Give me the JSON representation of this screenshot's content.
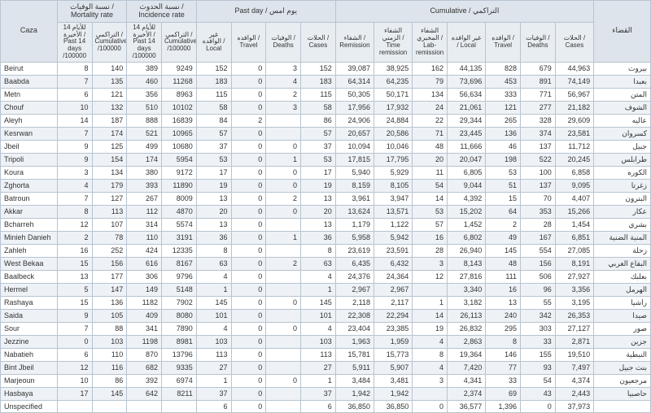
{
  "headers": {
    "caza": "Caza",
    "mortality": "نسبة الوفيات / Mortality rate",
    "incidence": "نسبة الحدوث / Incidence rate",
    "pastday": "Past day / يوم امس",
    "cumulative": "Cumulative / التراكمي",
    "caza_ar": "القضاء",
    "past14_100k": "للأيام 14 الأخيرة / Past 14 days /100000",
    "cumul_100k": "التراكمي / Cumulative /100000",
    "local": "غير الوافده / Local",
    "travel": "الوافده / Travel",
    "deaths": "الوفيات / Deaths",
    "cases": "الحلات / Cases",
    "remission": "الشفاء / Remission",
    "time_remission": "الشفاء الزمني / Time remission",
    "lab_remission": "الشفاء المخبري / Lab-remission"
  },
  "rows": [
    {
      "en": "Beirut",
      "ar": "بيروت",
      "m14": "8",
      "mc": "140",
      "i14": "389",
      "ic": "9249",
      "loc": "152",
      "trv": "0",
      "dth": "3",
      "cas": "152",
      "crem": "39,087",
      "ctrem": "38,925",
      "clab": "162",
      "cloc": "44,135",
      "ctrv": "828",
      "cdth": "679",
      "ccas": "44,963"
    },
    {
      "en": "Baabda",
      "ar": "بعبدا",
      "m14": "7",
      "mc": "135",
      "i14": "460",
      "ic": "11268",
      "loc": "183",
      "trv": "0",
      "dth": "4",
      "cas": "183",
      "crem": "64,314",
      "ctrem": "64,235",
      "clab": "79",
      "cloc": "73,696",
      "ctrv": "453",
      "cdth": "891",
      "ccas": "74,149"
    },
    {
      "en": "Metn",
      "ar": "المتن",
      "m14": "6",
      "mc": "121",
      "i14": "356",
      "ic": "8963",
      "loc": "115",
      "trv": "0",
      "dth": "2",
      "cas": "115",
      "crem": "50,305",
      "ctrem": "50,171",
      "clab": "134",
      "cloc": "56,634",
      "ctrv": "333",
      "cdth": "771",
      "ccas": "56,967"
    },
    {
      "en": "Chouf",
      "ar": "الشوف",
      "m14": "10",
      "mc": "132",
      "i14": "510",
      "ic": "10102",
      "loc": "58",
      "trv": "0",
      "dth": "3",
      "cas": "58",
      "crem": "17,956",
      "ctrem": "17,932",
      "clab": "24",
      "cloc": "21,061",
      "ctrv": "121",
      "cdth": "277",
      "ccas": "21,182"
    },
    {
      "en": "Aleyh",
      "ar": "عاليه",
      "m14": "14",
      "mc": "187",
      "i14": "888",
      "ic": "16839",
      "loc": "84",
      "trv": "2",
      "dth": "",
      "cas": "86",
      "crem": "24,906",
      "ctrem": "24,884",
      "clab": "22",
      "cloc": "29,344",
      "ctrv": "265",
      "cdth": "328",
      "ccas": "29,609"
    },
    {
      "en": "Kesrwan",
      "ar": "كسروان",
      "m14": "7",
      "mc": "174",
      "i14": "521",
      "ic": "10965",
      "loc": "57",
      "trv": "0",
      "dth": "",
      "cas": "57",
      "crem": "20,657",
      "ctrem": "20,586",
      "clab": "71",
      "cloc": "23,445",
      "ctrv": "136",
      "cdth": "374",
      "ccas": "23,581"
    },
    {
      "en": "Jbeil",
      "ar": "جبيل",
      "m14": "9",
      "mc": "125",
      "i14": "499",
      "ic": "10680",
      "loc": "37",
      "trv": "0",
      "dth": "0",
      "cas": "37",
      "crem": "10,094",
      "ctrem": "10,046",
      "clab": "48",
      "cloc": "11,666",
      "ctrv": "46",
      "cdth": "137",
      "ccas": "11,712"
    },
    {
      "en": "Tripoli",
      "ar": "طرابلس",
      "m14": "9",
      "mc": "154",
      "i14": "174",
      "ic": "5954",
      "loc": "53",
      "trv": "0",
      "dth": "1",
      "cas": "53",
      "crem": "17,815",
      "ctrem": "17,795",
      "clab": "20",
      "cloc": "20,047",
      "ctrv": "198",
      "cdth": "522",
      "ccas": "20,245"
    },
    {
      "en": "Koura",
      "ar": "الكوره",
      "m14": "3",
      "mc": "134",
      "i14": "380",
      "ic": "9172",
      "loc": "17",
      "trv": "0",
      "dth": "0",
      "cas": "17",
      "crem": "5,940",
      "ctrem": "5,929",
      "clab": "11",
      "cloc": "6,805",
      "ctrv": "53",
      "cdth": "100",
      "ccas": "6,858"
    },
    {
      "en": "Zghorta",
      "ar": "زغرتا",
      "m14": "4",
      "mc": "179",
      "i14": "393",
      "ic": "11890",
      "loc": "19",
      "trv": "0",
      "dth": "0",
      "cas": "19",
      "crem": "8,159",
      "ctrem": "8,105",
      "clab": "54",
      "cloc": "9,044",
      "ctrv": "51",
      "cdth": "137",
      "ccas": "9,095"
    },
    {
      "en": "Batroun",
      "ar": "البترون",
      "m14": "7",
      "mc": "127",
      "i14": "267",
      "ic": "8009",
      "loc": "13",
      "trv": "0",
      "dth": "2",
      "cas": "13",
      "crem": "3,961",
      "ctrem": "3,947",
      "clab": "14",
      "cloc": "4,392",
      "ctrv": "15",
      "cdth": "70",
      "ccas": "4,407"
    },
    {
      "en": "Akkar",
      "ar": "عكار",
      "m14": "8",
      "mc": "113",
      "i14": "112",
      "ic": "4870",
      "loc": "20",
      "trv": "0",
      "dth": "0",
      "cas": "20",
      "crem": "13,624",
      "ctrem": "13,571",
      "clab": "53",
      "cloc": "15,202",
      "ctrv": "64",
      "cdth": "353",
      "ccas": "15,266"
    },
    {
      "en": "Bcharreh",
      "ar": "بشري",
      "m14": "12",
      "mc": "107",
      "i14": "314",
      "ic": "5574",
      "loc": "13",
      "trv": "0",
      "dth": "",
      "cas": "13",
      "crem": "1,179",
      "ctrem": "1,122",
      "clab": "57",
      "cloc": "1,452",
      "ctrv": "2",
      "cdth": "28",
      "ccas": "1,454"
    },
    {
      "en": "Minieh Danieh",
      "ar": "المنية الضنية",
      "m14": "2",
      "mc": "78",
      "i14": "110",
      "ic": "3191",
      "loc": "36",
      "trv": "0",
      "dth": "1",
      "cas": "36",
      "crem": "5,958",
      "ctrem": "5,942",
      "clab": "16",
      "cloc": "6,802",
      "ctrv": "49",
      "cdth": "167",
      "ccas": "6,851"
    },
    {
      "en": "Zahleh",
      "ar": "زحلة",
      "m14": "16",
      "mc": "252",
      "i14": "424",
      "ic": "12335",
      "loc": "8",
      "trv": "0",
      "dth": "",
      "cas": "8",
      "crem": "23,619",
      "ctrem": "23,591",
      "clab": "28",
      "cloc": "26,940",
      "ctrv": "145",
      "cdth": "554",
      "ccas": "27,085"
    },
    {
      "en": "West Bekaa",
      "ar": "البقاع الغربي",
      "m14": "15",
      "mc": "156",
      "i14": "616",
      "ic": "8167",
      "loc": "63",
      "trv": "0",
      "dth": "2",
      "cas": "63",
      "crem": "6,435",
      "ctrem": "6,432",
      "clab": "3",
      "cloc": "8,143",
      "ctrv": "48",
      "cdth": "156",
      "ccas": "8,191"
    },
    {
      "en": "Baalbeck",
      "ar": "بعلبك",
      "m14": "13",
      "mc": "177",
      "i14": "306",
      "ic": "9796",
      "loc": "4",
      "trv": "0",
      "dth": "",
      "cas": "4",
      "crem": "24,376",
      "ctrem": "24,364",
      "clab": "12",
      "cloc": "27,816",
      "ctrv": "111",
      "cdth": "506",
      "ccas": "27,927"
    },
    {
      "en": "Hermel",
      "ar": "الهرمل",
      "m14": "5",
      "mc": "147",
      "i14": "149",
      "ic": "5148",
      "loc": "1",
      "trv": "0",
      "dth": "",
      "cas": "1",
      "crem": "2,967",
      "ctrem": "2,967",
      "clab": "",
      "cloc": "3,340",
      "ctrv": "16",
      "cdth": "96",
      "ccas": "3,356"
    },
    {
      "en": "Rashaya",
      "ar": "راشيا",
      "m14": "15",
      "mc": "136",
      "i14": "1182",
      "ic": "7902",
      "loc": "145",
      "trv": "0",
      "dth": "0",
      "cas": "145",
      "crem": "2,118",
      "ctrem": "2,117",
      "clab": "1",
      "cloc": "3,182",
      "ctrv": "13",
      "cdth": "55",
      "ccas": "3,195"
    },
    {
      "en": "Saida",
      "ar": "صيدا",
      "m14": "9",
      "mc": "105",
      "i14": "409",
      "ic": "8080",
      "loc": "101",
      "trv": "0",
      "dth": "",
      "cas": "101",
      "crem": "22,308",
      "ctrem": "22,294",
      "clab": "14",
      "cloc": "26,113",
      "ctrv": "240",
      "cdth": "342",
      "ccas": "26,353"
    },
    {
      "en": "Sour",
      "ar": "صور",
      "m14": "7",
      "mc": "88",
      "i14": "341",
      "ic": "7890",
      "loc": "4",
      "trv": "0",
      "dth": "0",
      "cas": "4",
      "crem": "23,404",
      "ctrem": "23,385",
      "clab": "19",
      "cloc": "26,832",
      "ctrv": "295",
      "cdth": "303",
      "ccas": "27,127"
    },
    {
      "en": "Jezzine",
      "ar": "جزين",
      "m14": "0",
      "mc": "103",
      "i14": "1198",
      "ic": "8981",
      "loc": "103",
      "trv": "0",
      "dth": "",
      "cas": "103",
      "crem": "1,963",
      "ctrem": "1,959",
      "clab": "4",
      "cloc": "2,863",
      "ctrv": "8",
      "cdth": "33",
      "ccas": "2,871"
    },
    {
      "en": "Nabatieh",
      "ar": "النبطية",
      "m14": "6",
      "mc": "110",
      "i14": "870",
      "ic": "13796",
      "loc": "113",
      "trv": "0",
      "dth": "",
      "cas": "113",
      "crem": "15,781",
      "ctrem": "15,773",
      "clab": "8",
      "cloc": "19,364",
      "ctrv": "146",
      "cdth": "155",
      "ccas": "19,510"
    },
    {
      "en": "Bint Jbeil",
      "ar": "بنت جبيل",
      "m14": "12",
      "mc": "116",
      "i14": "682",
      "ic": "9335",
      "loc": "27",
      "trv": "0",
      "dth": "",
      "cas": "27",
      "crem": "5,911",
      "ctrem": "5,907",
      "clab": "4",
      "cloc": "7,420",
      "ctrv": "77",
      "cdth": "93",
      "ccas": "7,497"
    },
    {
      "en": "Marjeoun",
      "ar": "مرجعيون",
      "m14": "10",
      "mc": "86",
      "i14": "392",
      "ic": "6974",
      "loc": "1",
      "trv": "0",
      "dth": "0",
      "cas": "1",
      "crem": "3,484",
      "ctrem": "3,481",
      "clab": "3",
      "cloc": "4,341",
      "ctrv": "33",
      "cdth": "54",
      "ccas": "4,374"
    },
    {
      "en": "Hasbaya",
      "ar": "حاصبيا",
      "m14": "17",
      "mc": "145",
      "i14": "642",
      "ic": "8211",
      "loc": "37",
      "trv": "0",
      "dth": "",
      "cas": "37",
      "crem": "1,942",
      "ctrem": "1,942",
      "clab": "",
      "cloc": "2,374",
      "ctrv": "69",
      "cdth": "43",
      "ccas": "2,443"
    },
    {
      "en": "Unspecified",
      "ar": "",
      "m14": "",
      "mc": "",
      "i14": "",
      "ic": "",
      "loc": "6",
      "trv": "0",
      "dth": "",
      "cas": "6",
      "crem": "36,850",
      "ctrem": "36,850",
      "clab": "0",
      "cloc": "36,577",
      "ctrv": "1,396",
      "cdth": "0",
      "ccas": "37,973"
    }
  ],
  "colors": {
    "header_bg": "#e8edf2",
    "group_bg": "#dde4eb",
    "even_row": "#eef2f6",
    "border": "#b8c4d0",
    "text": "#333333"
  }
}
